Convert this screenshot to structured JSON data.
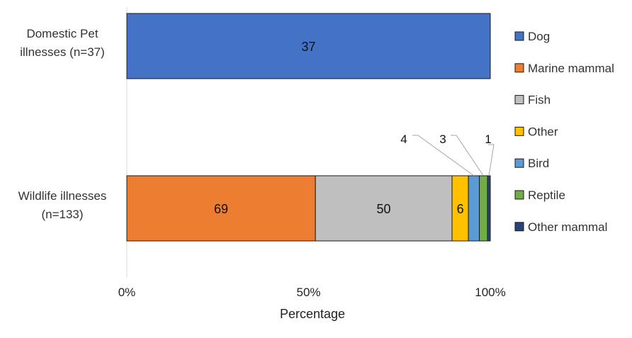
{
  "chart_data": {
    "type": "bar",
    "orientation": "horizontal",
    "stacked": "percent",
    "categories": [
      "Domestic Pet illnesses (n=37)",
      "Wildlife illnesses (n=133)"
    ],
    "category_lines": [
      [
        "Domestic Pet",
        "illnesses (n=37)"
      ],
      [
        "Wildlife illnesses",
        "(n=133)"
      ]
    ],
    "series": [
      {
        "name": "Dog",
        "color": "#4472C4",
        "values": [
          37,
          0
        ]
      },
      {
        "name": "Marine mammal",
        "color": "#ED7D31",
        "values": [
          0,
          69
        ]
      },
      {
        "name": "Fish",
        "color": "#BFBFBF",
        "values": [
          0,
          50
        ]
      },
      {
        "name": "Other",
        "color": "#FFC000",
        "values": [
          0,
          6
        ]
      },
      {
        "name": "Bird",
        "color": "#5B9BD5",
        "values": [
          0,
          4
        ]
      },
      {
        "name": "Reptile",
        "color": "#70AD47",
        "values": [
          0,
          3
        ]
      },
      {
        "name": "Other mammal",
        "color": "#264478",
        "values": [
          0,
          1
        ]
      }
    ],
    "xlabel": "Percentage",
    "ylabel": "",
    "xlim": [
      0,
      100
    ],
    "xticks": [
      "0%",
      "50%",
      "100%"
    ],
    "legend_position": "right",
    "data_labels": [
      {
        "bar": 0,
        "series": "Dog",
        "text": "37"
      },
      {
        "bar": 1,
        "series": "Marine mammal",
        "text": "69"
      },
      {
        "bar": 1,
        "series": "Fish",
        "text": "50"
      },
      {
        "bar": 1,
        "series": "Other",
        "text": "6"
      },
      {
        "bar": 1,
        "series": "Bird",
        "text": "4",
        "callout": true
      },
      {
        "bar": 1,
        "series": "Reptile",
        "text": "3",
        "callout": true
      },
      {
        "bar": 1,
        "series": "Other mammal",
        "text": "1",
        "callout": true
      }
    ]
  }
}
